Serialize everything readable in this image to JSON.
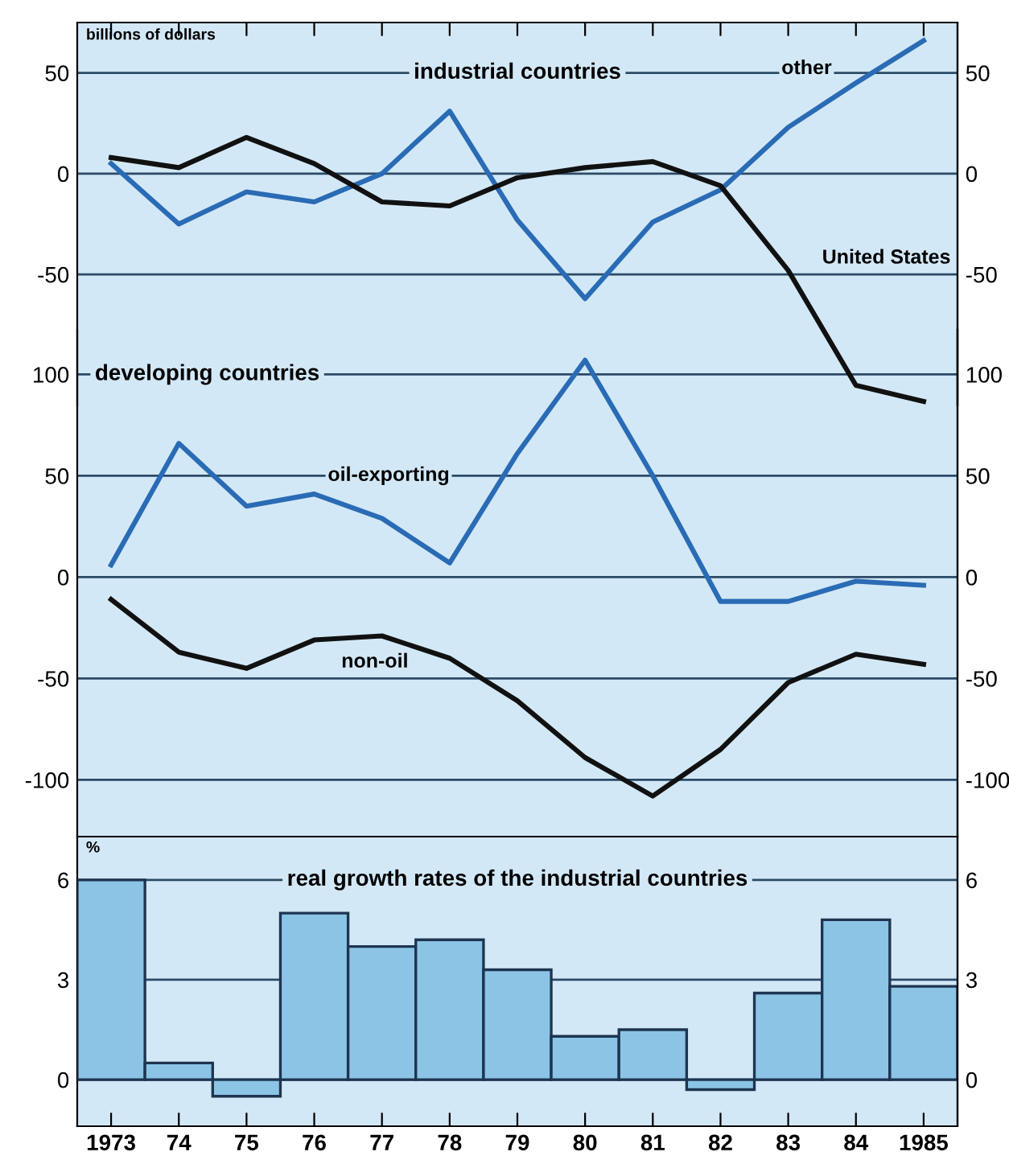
{
  "chart_data": [
    {
      "type": "line",
      "title": "industrial countries",
      "ylabel": "billions of dollars",
      "categories": [
        "1973",
        "74",
        "75",
        "76",
        "77",
        "78",
        "79",
        "80",
        "81",
        "82",
        "83",
        "84",
        "1985"
      ],
      "series": [
        {
          "name": "other",
          "color": "#2a6bb5",
          "values": [
            5,
            -25,
            -9,
            -14,
            0,
            31,
            -23,
            -62,
            -24,
            -8,
            23,
            45,
            66
          ]
        },
        {
          "name": "United States",
          "color": "#111111",
          "values": [
            8,
            3,
            18,
            5,
            -14,
            -16,
            -2,
            3,
            6,
            -6,
            -48,
            -105,
            -113
          ]
        }
      ],
      "ylim": [
        -115,
        75
      ],
      "yticks": [
        -50,
        0,
        50
      ],
      "y2lim": [
        -115,
        75
      ],
      "y2ticks": [
        -50,
        0,
        50
      ],
      "grid": "y",
      "tick_labels": "y"
    },
    {
      "type": "line",
      "title": "developing countries",
      "categories": [
        "1973",
        "74",
        "75",
        "76",
        "77",
        "78",
        "79",
        "80",
        "81",
        "82",
        "83",
        "84",
        "1985"
      ],
      "series": [
        {
          "name": "oil-exporting",
          "color": "#2a6bb5",
          "values": [
            6,
            66,
            35,
            41,
            29,
            7,
            61,
            107,
            50,
            -12,
            -12,
            -2,
            -4
          ]
        },
        {
          "name": "non-oil",
          "color": "#111111",
          "values": [
            -11,
            -37,
            -45,
            -31,
            -29,
            -40,
            -61,
            -89,
            -108,
            -85,
            -52,
            -38,
            -43
          ]
        }
      ],
      "ylim": [
        -128,
        122
      ],
      "yticks": [
        -100,
        -50,
        0,
        50,
        100
      ],
      "y2lim": [
        -128,
        122
      ],
      "y2ticks": [
        -100,
        -50,
        0,
        50,
        100
      ],
      "grid": "y",
      "tick_labels": "y"
    },
    {
      "type": "bar",
      "title": "real growth rates of the industrial countries",
      "ylabel": "%",
      "categories": [
        "1973",
        "74",
        "75",
        "76",
        "77",
        "78",
        "79",
        "80",
        "81",
        "82",
        "83",
        "84",
        "1985"
      ],
      "values": [
        6.0,
        0.5,
        -0.5,
        5.0,
        4.0,
        4.2,
        3.3,
        1.3,
        1.5,
        -0.3,
        2.6,
        4.8,
        2.8
      ],
      "color": "#8cc4e6",
      "ylim": [
        -1.4,
        7.3
      ],
      "yticks": [
        0,
        3,
        6
      ],
      "y2lim": [
        -1.4,
        7.3
      ],
      "y2ticks": [
        0,
        3,
        6
      ],
      "grid": "y"
    }
  ]
}
